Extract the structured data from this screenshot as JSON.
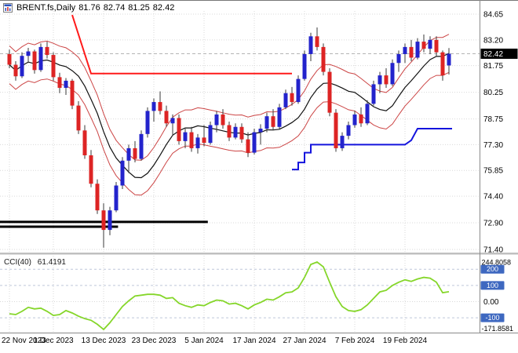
{
  "header": {
    "symbol": "BRENT.fs,Daily",
    "open": "81.76",
    "high": "82.74",
    "low": "81.25",
    "close": "82.42"
  },
  "cci_label": {
    "name": "CCI(40)",
    "value": "61.4191"
  },
  "colors": {
    "bull": "#2323cc",
    "bear": "#dd2424",
    "wick": "#3a3a3a",
    "envelope": "#cc4545",
    "ma_line": "#111111",
    "trail_red": "#ff1a1a",
    "trail_blue": "#1414dd",
    "support_line": "#000000",
    "cci_line": "#85d62a",
    "grid": "#d9d9d9",
    "level_line": "#bfc7da",
    "axis_text": "#000000",
    "price_badge_bg": "#000000",
    "price_badge_text": "#ffffff",
    "level_badge_bg": "#3e68c0",
    "level_badge_text": "#ffffff",
    "separator": "#8a8a8a",
    "current_price_line": "#b4b4b4",
    "top_border": "#777777"
  },
  "chart_data": [
    {
      "type": "candlestick",
      "symbol": "BRENT.fs",
      "timeframe": "Daily",
      "y_axis_labels": [
        "84.65",
        "83.20",
        "81.75",
        "80.25",
        "78.75",
        "77.30",
        "75.85",
        "74.40",
        "72.90",
        "71.40"
      ],
      "x_tick_labels": [
        "22 Nov 2023",
        "1 Dec 2023",
        "13 Dec 2023",
        "23 Dec 2023",
        "5 Jan 2024",
        "17 Jan 2024",
        "27 Jan 2024",
        "7 Feb 2024",
        "19 Feb 2024"
      ],
      "x_tick_bar_indices": [
        0,
        7,
        15,
        23,
        31,
        39,
        47,
        55,
        63
      ],
      "current_price": 82.42,
      "current_price_label": "82.42",
      "candles_ohlc": [
        [
          82.4,
          82.65,
          81.6,
          81.8
        ],
        [
          81.8,
          82.0,
          80.9,
          81.15
        ],
        [
          81.15,
          82.5,
          81.05,
          82.3
        ],
        [
          82.3,
          82.75,
          81.9,
          82.55
        ],
        [
          82.55,
          82.65,
          81.3,
          81.5
        ],
        [
          81.5,
          83.0,
          81.4,
          82.8
        ],
        [
          82.8,
          83.1,
          82.15,
          82.35
        ],
        [
          82.35,
          82.5,
          80.9,
          81.1
        ],
        [
          81.1,
          81.35,
          80.2,
          80.5
        ],
        [
          80.5,
          81.05,
          80.1,
          80.9
        ],
        [
          80.9,
          81.0,
          79.3,
          79.5
        ],
        [
          79.5,
          79.75,
          77.9,
          78.1
        ],
        [
          78.1,
          78.4,
          76.5,
          76.7
        ],
        [
          76.7,
          77.0,
          74.9,
          75.1
        ],
        [
          75.1,
          75.35,
          73.4,
          73.6
        ],
        [
          73.6,
          74.0,
          71.5,
          72.5
        ],
        [
          72.5,
          73.8,
          72.2,
          73.6
        ],
        [
          73.6,
          75.2,
          73.5,
          75.0
        ],
        [
          75.0,
          76.6,
          74.8,
          76.4
        ],
        [
          76.4,
          77.3,
          75.7,
          77.1
        ],
        [
          77.1,
          77.5,
          76.3,
          76.5
        ],
        [
          76.5,
          78.1,
          76.4,
          77.9
        ],
        [
          77.9,
          79.4,
          77.7,
          79.2
        ],
        [
          79.2,
          79.9,
          78.6,
          79.7
        ],
        [
          79.7,
          80.3,
          79.0,
          79.2
        ],
        [
          79.2,
          79.5,
          78.3,
          78.5
        ],
        [
          78.5,
          79.0,
          77.8,
          78.8
        ],
        [
          78.8,
          79.0,
          77.3,
          77.5
        ],
        [
          77.5,
          78.2,
          77.1,
          78.0
        ],
        [
          78.0,
          78.3,
          76.9,
          77.1
        ],
        [
          77.1,
          77.9,
          76.8,
          77.7
        ],
        [
          77.7,
          78.4,
          77.2,
          77.4
        ],
        [
          77.4,
          78.6,
          77.3,
          78.4
        ],
        [
          78.4,
          79.2,
          78.0,
          79.0
        ],
        [
          79.0,
          79.3,
          78.2,
          78.4
        ],
        [
          78.4,
          78.6,
          77.5,
          77.7
        ],
        [
          77.7,
          78.5,
          77.6,
          78.3
        ],
        [
          78.3,
          78.5,
          77.4,
          77.6
        ],
        [
          77.6,
          78.0,
          76.6,
          76.85
        ],
        [
          76.85,
          78.2,
          76.75,
          78.0
        ],
        [
          78.0,
          78.45,
          77.3,
          78.2
        ],
        [
          78.2,
          79.1,
          78.0,
          78.9
        ],
        [
          78.9,
          79.3,
          78.1,
          78.3
        ],
        [
          78.3,
          79.6,
          78.2,
          79.4
        ],
        [
          79.4,
          80.4,
          79.3,
          80.2
        ],
        [
          80.2,
          80.55,
          79.5,
          79.7
        ],
        [
          79.7,
          81.2,
          79.6,
          81.0
        ],
        [
          81.0,
          82.6,
          80.9,
          82.4
        ],
        [
          82.4,
          83.6,
          82.0,
          83.4
        ],
        [
          83.4,
          83.9,
          82.6,
          82.8
        ],
        [
          82.8,
          83.0,
          81.2,
          81.4
        ],
        [
          81.4,
          81.6,
          78.9,
          79.1
        ],
        [
          79.1,
          79.3,
          76.9,
          77.1
        ],
        [
          77.1,
          78.0,
          76.95,
          77.8
        ],
        [
          77.8,
          78.6,
          77.6,
          78.4
        ],
        [
          78.4,
          79.2,
          78.25,
          79.0
        ],
        [
          79.0,
          79.4,
          78.3,
          78.5
        ],
        [
          78.5,
          79.8,
          78.4,
          79.6
        ],
        [
          79.6,
          80.9,
          79.5,
          80.7
        ],
        [
          80.7,
          81.4,
          80.2,
          81.2
        ],
        [
          81.2,
          81.6,
          80.5,
          80.7
        ],
        [
          80.7,
          82.1,
          80.6,
          81.9
        ],
        [
          81.9,
          82.6,
          81.4,
          82.4
        ],
        [
          82.4,
          83.0,
          81.9,
          82.8
        ],
        [
          82.8,
          83.2,
          82.0,
          82.2
        ],
        [
          82.2,
          83.3,
          82.1,
          83.1
        ],
        [
          83.1,
          83.5,
          82.5,
          82.7
        ],
        [
          82.7,
          83.4,
          82.4,
          83.2
        ],
        [
          83.2,
          83.4,
          82.3,
          82.5
        ],
        [
          82.5,
          82.6,
          80.9,
          81.2
        ],
        [
          81.76,
          82.74,
          81.25,
          82.42
        ]
      ],
      "overlays": {
        "envelope": {
          "period": 10,
          "deviation_pct": 1.3
        },
        "red_trail_points": [
          [
            10,
            84.6
          ],
          [
            13,
            81.3
          ],
          [
            45,
            81.3
          ]
        ],
        "blue_trail_points": [
          [
            45,
            75.9
          ],
          [
            46,
            75.9
          ],
          [
            46,
            76.3
          ],
          [
            47,
            76.3
          ],
          [
            47,
            76.85
          ],
          [
            48,
            76.85
          ],
          [
            48,
            77.3
          ],
          [
            63,
            77.3
          ],
          [
            64,
            77.55
          ],
          [
            65,
            78.2
          ],
          [
            70.5,
            78.2
          ]
        ],
        "support_lines": [
          {
            "price": 72.95,
            "from_bar": -1.5,
            "to_bar": 31.6
          },
          {
            "price": 72.68,
            "from_bar": -1.5,
            "to_bar": 17.3
          }
        ]
      }
    },
    {
      "type": "line",
      "indicator": "CCI(40)",
      "current_value": 61.4191,
      "y_max": 244.8058,
      "y_min": -171.8581,
      "y_max_label": "244.8058",
      "y_min_label": "-171.8581",
      "zero_label": "0.00",
      "levels": [
        200,
        100,
        -100
      ],
      "values": [
        -75,
        -80,
        -60,
        -35,
        -45,
        -40,
        -60,
        -85,
        -80,
        -55,
        -70,
        -90,
        -105,
        -115,
        -140,
        -171.8581,
        -130,
        -80,
        -30,
        5,
        35,
        40,
        45,
        45,
        40,
        20,
        25,
        -10,
        -25,
        -35,
        -20,
        -25,
        -5,
        10,
        5,
        -15,
        -10,
        -25,
        -45,
        -20,
        -5,
        15,
        10,
        30,
        55,
        60,
        85,
        150,
        230,
        244.8058,
        215,
        120,
        30,
        -30,
        -55,
        -60,
        -50,
        -20,
        20,
        60,
        70,
        100,
        120,
        135,
        125,
        140,
        150,
        145,
        120,
        55,
        61.4191
      ]
    }
  ]
}
